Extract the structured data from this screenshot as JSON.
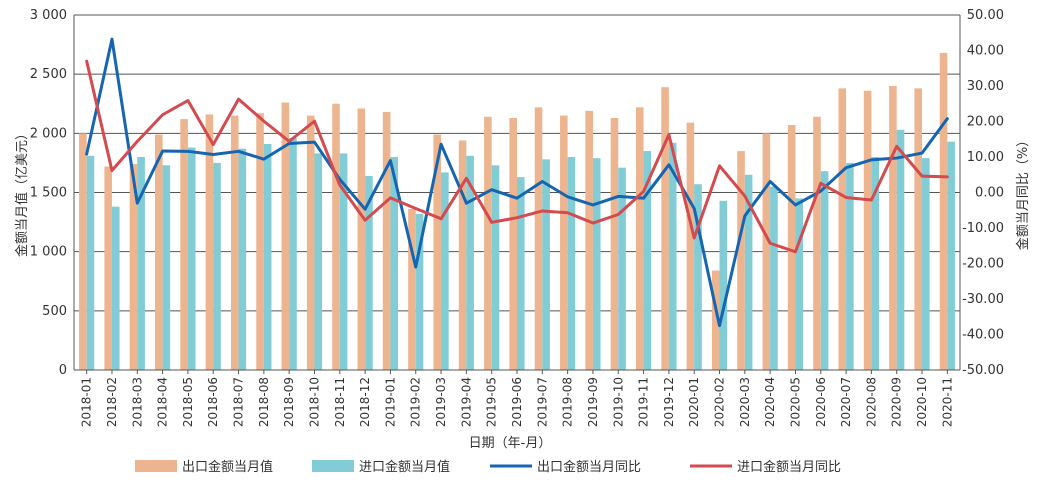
{
  "chart_data": {
    "type": "bar",
    "xlabel": "日期（年-月）",
    "ylabel_left": "金额当月值（亿美元）",
    "ylabel_right": "金额当月同比（%）",
    "ylim_left": [
      0,
      3000
    ],
    "ylim_right": [
      -50,
      50
    ],
    "yticks_left": [
      "0",
      "500",
      "1 000",
      "1 500",
      "2 000",
      "2 500",
      "3 000"
    ],
    "yticks_right": [
      "-50.00",
      "-40.00",
      "-30.00",
      "-20.00",
      "-10.00",
      "0.00",
      "10.00",
      "20.00",
      "30.00",
      "40.00",
      "50.00"
    ],
    "grid": true,
    "legend_position": "bottom",
    "categories": [
      "2018-01",
      "2018-02",
      "2018-03",
      "2018-04",
      "2018-05",
      "2018-06",
      "2018-07",
      "2018-08",
      "2018-09",
      "2018-10",
      "2018-11",
      "2018-12",
      "2019-01",
      "2019-02",
      "2019-03",
      "2019-04",
      "2019-05",
      "2019-06",
      "2019-07",
      "2019-08",
      "2019-09",
      "2019-10",
      "2019-11",
      "2019-12",
      "2020-01",
      "2020-02",
      "2020-03",
      "2020-04",
      "2020-05",
      "2020-06",
      "2020-07",
      "2020-08",
      "2020-09",
      "2020-10",
      "2020-11"
    ],
    "series": [
      {
        "name": "出口金额当月值",
        "type": "bar",
        "axis": "left",
        "color": "#EDB58F",
        "values": [
          2000,
          1720,
          1740,
          1990,
          2120,
          2160,
          2150,
          2170,
          2260,
          2150,
          2250,
          2210,
          2180,
          1360,
          1990,
          1940,
          2140,
          2130,
          2220,
          2150,
          2190,
          2130,
          2220,
          2390,
          2090,
          840,
          1850,
          2000,
          2070,
          2140,
          2380,
          2360,
          2400,
          2380,
          2680
        ]
      },
      {
        "name": "进口金额当月值",
        "type": "bar",
        "axis": "left",
        "color": "#82CCD6",
        "values": [
          1810,
          1380,
          1800,
          1730,
          1880,
          1750,
          1870,
          1910,
          1960,
          1830,
          1830,
          1640,
          1800,
          1320,
          1670,
          1810,
          1730,
          1630,
          1780,
          1800,
          1790,
          1710,
          1850,
          1920,
          1570,
          1430,
          1650,
          1550,
          1450,
          1680,
          1750,
          1800,
          2030,
          1790,
          1930
        ]
      },
      {
        "name": "出口金额当月同比",
        "type": "line",
        "axis": "right",
        "color": "#1565B0",
        "values": [
          10.8,
          43.2,
          -3.0,
          11.7,
          11.6,
          10.7,
          11.6,
          9.4,
          13.8,
          14.2,
          3.7,
          -4.7,
          9.0,
          -21.0,
          13.6,
          -3.0,
          0.8,
          -1.6,
          3.1,
          -1.2,
          -3.5,
          -1.1,
          -1.6,
          7.8,
          -4.5,
          -37.5,
          -6.6,
          3.1,
          -3.5,
          0.4,
          7.0,
          9.2,
          9.7,
          11.1,
          20.8
        ]
      },
      {
        "name": "进口金额当月同比",
        "type": "line",
        "axis": "right",
        "color": "#D34A4F",
        "values": [
          37.0,
          6.2,
          14.4,
          21.9,
          25.9,
          13.5,
          26.3,
          20.1,
          14.4,
          20.1,
          2.1,
          -7.8,
          -1.5,
          -4.5,
          -7.4,
          4.0,
          -8.4,
          -7.1,
          -5.2,
          -5.7,
          -8.6,
          -6.2,
          0.3,
          16.3,
          -12.8,
          7.5,
          -1.0,
          -14.3,
          -16.7,
          2.6,
          -1.4,
          -2.1,
          13.0,
          4.6,
          4.4
        ]
      }
    ]
  }
}
